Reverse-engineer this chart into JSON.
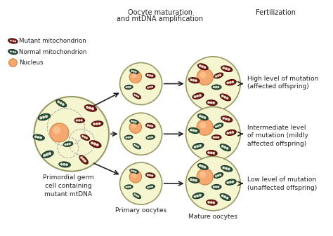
{
  "bg_color": "#ffffff",
  "cell_fill": "#f5f5d0",
  "cell_edge": "#999966",
  "nucleus_fill": "#f5a870",
  "nucleus_edge": "#cc8844",
  "nucleus_highlight": "#ffd0a0",
  "mutant_fill": "#7a1515",
  "mutant_edge": "#4a0808",
  "normal_fill": "#2a5545",
  "normal_edge": "#163322",
  "cristae_color": "#ddddcc",
  "title1": "Oocyte maturation",
  "title2": "and mtDNA amplification",
  "title3": "Fertilization",
  "label_primordial": "Primordial germ\ncell containing\nmutant mtDNA",
  "label_primary": "Primary oocytes",
  "label_mature": "Mature oocytes",
  "label_high": "High level of mutation\n(affected offspring)",
  "label_intermediate": "Intermediate level\nof mutation (mildly\naffected offspring)",
  "label_low": "Low level of mutation\n(unaffected offspring)",
  "legend_mutant": "Mutant mitochondrion",
  "legend_normal": "Normal mitochondrion",
  "legend_nucleus": "Nucleus"
}
